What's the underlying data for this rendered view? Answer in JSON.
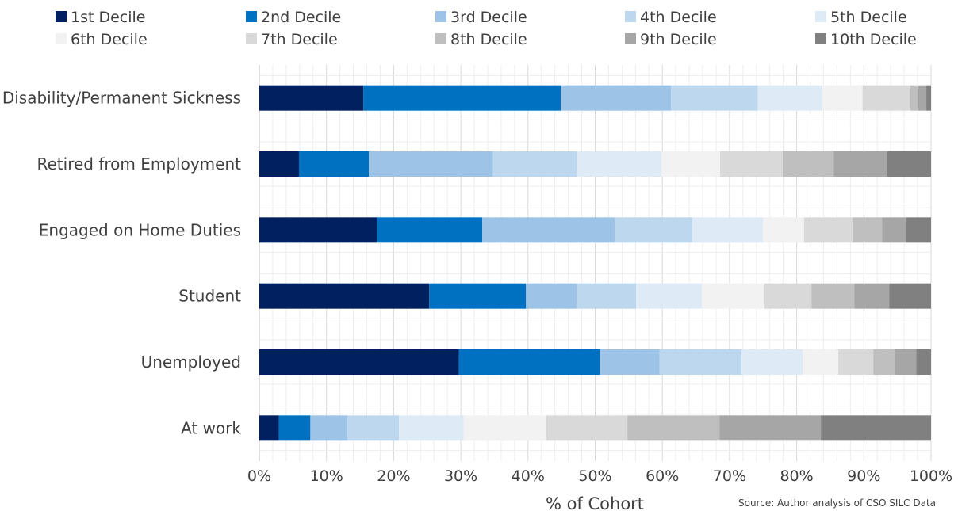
{
  "chart_data": {
    "type": "bar",
    "orientation": "horizontal",
    "stacked": "percent",
    "categories": [
      "Disability/Permanent Sickness",
      "Retired from Employment",
      "Engaged on Home Duties",
      "Student",
      "Unemployed",
      "At work"
    ],
    "series": [
      {
        "name": "1st Decile",
        "color": "#002060",
        "values": [
          15.5,
          5.9,
          17.5,
          25.3,
          29.7,
          2.9
        ]
      },
      {
        "name": "2nd Decile",
        "color": "#0070C0",
        "values": [
          29.4,
          10.4,
          15.7,
          14.4,
          21.0,
          4.7
        ]
      },
      {
        "name": "3rd Decile",
        "color": "#9DC3E6",
        "values": [
          16.4,
          18.5,
          19.7,
          7.6,
          8.9,
          5.5
        ]
      },
      {
        "name": "4th Decile",
        "color": "#BDD7EE",
        "values": [
          12.9,
          12.5,
          11.6,
          8.8,
          12.2,
          7.7
        ]
      },
      {
        "name": "5th Decile",
        "color": "#DEEBF7",
        "values": [
          9.6,
          12.6,
          10.5,
          9.8,
          9.1,
          9.6
        ]
      },
      {
        "name": "6th Decile",
        "color": "#F2F2F2",
        "values": [
          6.0,
          8.7,
          6.1,
          9.3,
          5.3,
          12.3
        ]
      },
      {
        "name": "7th Decile",
        "color": "#D9D9D9",
        "values": [
          7.1,
          9.3,
          7.2,
          7.0,
          5.2,
          12.1
        ]
      },
      {
        "name": "8th Decile",
        "color": "#BFBFBF",
        "values": [
          1.2,
          7.6,
          4.4,
          6.4,
          3.2,
          13.7
        ]
      },
      {
        "name": "9th Decile",
        "color": "#A6A6A6",
        "values": [
          1.2,
          8.0,
          3.6,
          5.2,
          3.2,
          15.1
        ]
      },
      {
        "name": "10th Decile",
        "color": "#808080",
        "values": [
          0.7,
          6.5,
          3.7,
          6.2,
          2.2,
          16.4
        ]
      }
    ],
    "xlabel": "% of Cohort",
    "xlim": [
      0,
      100
    ],
    "xticks": [
      "0%",
      "10%",
      "20%",
      "30%",
      "40%",
      "50%",
      "60%",
      "70%",
      "80%",
      "90%",
      "100%"
    ],
    "grid": true,
    "legend_position": "top",
    "source": "Source: Author analysis of CSO SILC Data"
  }
}
